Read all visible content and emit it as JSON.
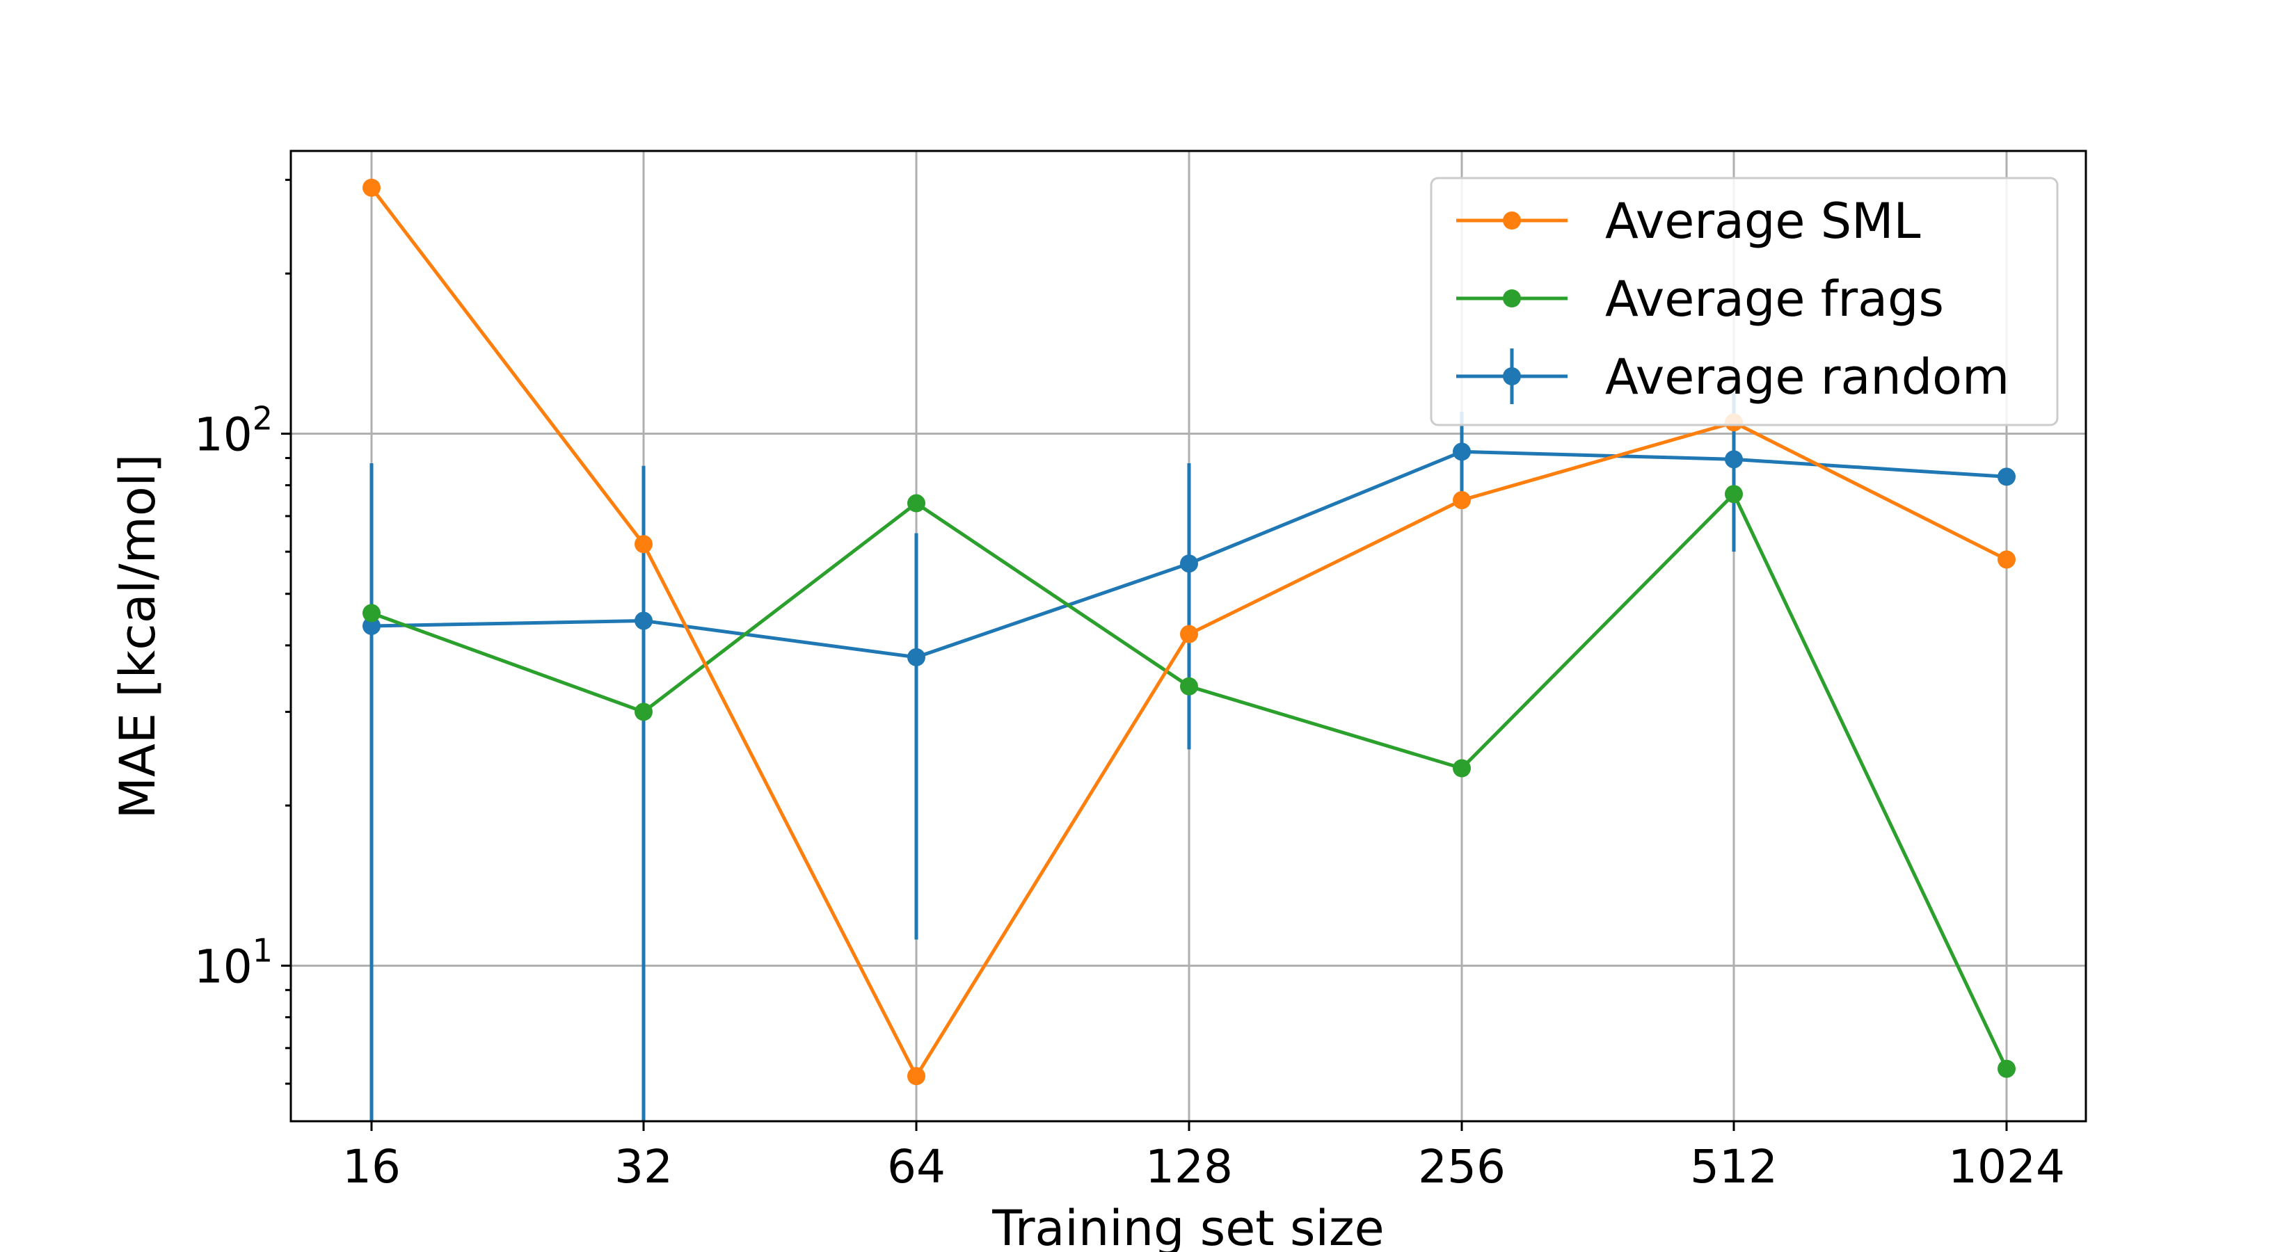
{
  "chart_data": {
    "type": "line",
    "title": "",
    "xlabel": "Training set size",
    "ylabel": "MAE [kcal/mol]",
    "x": [
      16,
      32,
      64,
      128,
      256,
      512,
      1024
    ],
    "x_tick_labels": [
      "16",
      "32",
      "64",
      "128",
      "256",
      "512",
      "1024"
    ],
    "x_scale": "log2",
    "y_scale": "log",
    "ylim": [
      5.1,
      340
    ],
    "y_ticks": [
      {
        "value": 10,
        "base": "10",
        "exp": "1"
      },
      {
        "value": 100,
        "base": "10",
        "exp": "2"
      }
    ],
    "grid": true,
    "legend_placement": "top-right",
    "series": [
      {
        "name": "Average SML",
        "color": "#ff7f0e",
        "values": [
          290,
          62,
          6.2,
          42,
          75,
          105,
          58
        ]
      },
      {
        "name": "Average frags",
        "color": "#2ca02c",
        "values": [
          46,
          30,
          74,
          33.5,
          23.5,
          77,
          6.4
        ]
      },
      {
        "name": "Average random",
        "color": "#1f77b4",
        "values": [
          43.5,
          44.5,
          38,
          57,
          92.5,
          89.5,
          83
        ],
        "error_low": [
          5.1,
          5.1,
          11.2,
          25.5,
          75,
          60,
          83
        ],
        "error_high": [
          88,
          87,
          65,
          88,
          110,
          119,
          83
        ]
      }
    ]
  }
}
